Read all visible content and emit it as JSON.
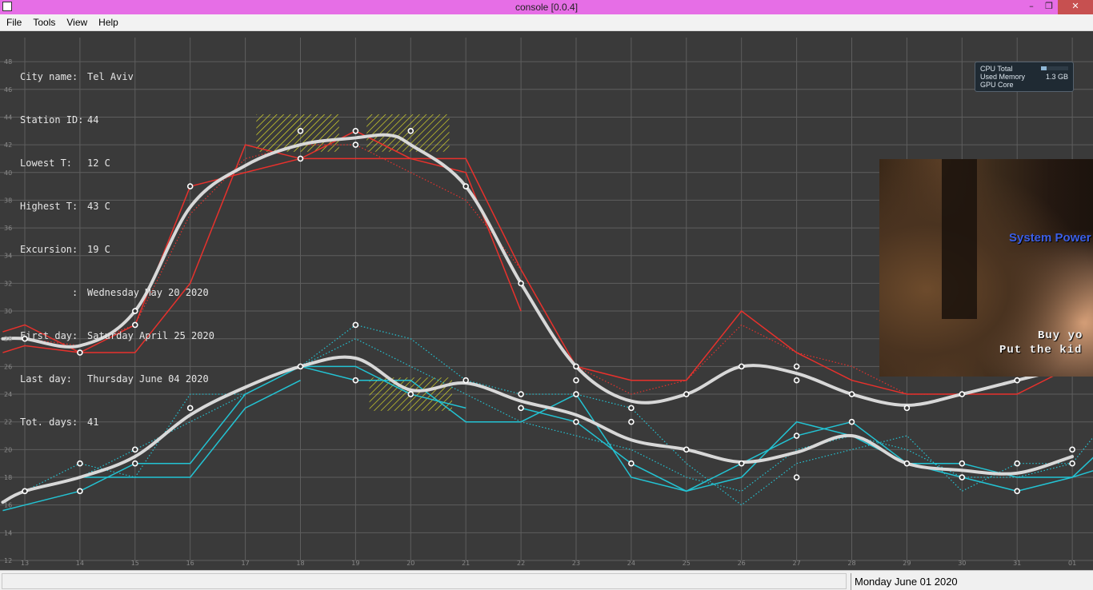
{
  "window": {
    "title": "console [0.0.4]",
    "buttons": {
      "minimize": "–",
      "maximize": "❐",
      "close": "✕"
    }
  },
  "menu": [
    "File",
    "Tools",
    "View",
    "Help"
  ],
  "info": [
    {
      "key": "City name:",
      "value": "Tel Aviv"
    },
    {
      "key": "Station ID:",
      "value": "44"
    },
    {
      "key": "Lowest T:",
      "value": "12 C"
    },
    {
      "key": "Highest T:",
      "value": "43 C"
    },
    {
      "key": "Excursion:",
      "value": "19 C"
    },
    {
      "key": "         :",
      "value": "Wednesday May 20 2020"
    },
    {
      "key": "First day:",
      "value": "Saturday April 25 2020"
    },
    {
      "key": "Last day:",
      "value": "Thursday June 04 2020"
    },
    {
      "key": "Tot. days:",
      "value": "41"
    }
  ],
  "gadget": {
    "cpu_label": "CPU Total",
    "cpu_fraction": 0.2,
    "mem_label": "Used Memory",
    "mem_value": "1.3 GB",
    "gpu_label": "GPU Core"
  },
  "video": {
    "overlay_text": "System Power",
    "subtitle_line1": "Buy yo",
    "subtitle_line2": "Put the kid"
  },
  "status": {
    "date": "Monday June 01 2020"
  },
  "chart_data": {
    "type": "line",
    "x_ticks": [
      "13",
      "14",
      "15",
      "16",
      "17",
      "18",
      "19",
      "20",
      "21",
      "22",
      "23",
      "24",
      "25",
      "26",
      "27",
      "28",
      "29",
      "30",
      "31",
      "01"
    ],
    "x": [
      13,
      14,
      15,
      16,
      17,
      18,
      19,
      20,
      21,
      22,
      23,
      24,
      25,
      26,
      27,
      28,
      29,
      30,
      31,
      32
    ],
    "y_ticks": [
      12,
      14,
      16,
      18,
      20,
      22,
      24,
      26,
      28,
      30,
      32,
      34,
      36,
      38,
      40,
      42,
      44,
      46,
      48
    ],
    "ylim": [
      12,
      49
    ],
    "grid": true,
    "colors": {
      "background": "#3a3a3a",
      "grid": "#5e5e5e",
      "high": "#e8312c",
      "low": "#23c3d3",
      "smooth": "#d8d8d8",
      "smooth_highlight": "#e7e7b0",
      "hatch": "#e3e32a",
      "point": "#ffffff"
    },
    "series": [
      {
        "role": "high-main",
        "style": "solid",
        "points": [
          [
            12.6,
            27
          ],
          [
            13,
            27.5
          ],
          [
            14,
            27
          ],
          [
            15,
            27
          ],
          [
            16,
            32
          ],
          [
            17,
            42
          ],
          [
            18,
            41
          ],
          [
            19,
            41
          ],
          [
            20,
            41
          ],
          [
            21,
            41
          ],
          [
            22,
            33
          ],
          [
            23,
            26
          ],
          [
            24,
            25
          ],
          [
            25,
            25
          ],
          [
            26,
            30
          ],
          [
            27,
            27
          ],
          [
            28,
            25
          ],
          [
            29,
            24
          ],
          [
            30,
            24
          ],
          [
            31,
            24
          ],
          [
            32,
            26
          ]
        ]
      },
      {
        "role": "high-alt",
        "style": "solid",
        "points": [
          [
            12.6,
            28.5
          ],
          [
            13,
            29
          ],
          [
            14,
            27
          ],
          [
            15,
            29
          ],
          [
            16,
            39
          ],
          [
            17,
            40
          ],
          [
            18,
            41
          ],
          [
            19,
            43
          ],
          [
            20,
            41
          ],
          [
            21,
            40
          ],
          [
            22,
            30
          ]
        ]
      },
      {
        "role": "high-dotted",
        "style": "dotted",
        "points": [
          [
            12.6,
            28
          ],
          [
            13,
            28
          ],
          [
            14,
            27.5
          ],
          [
            15,
            29
          ],
          [
            16,
            37
          ],
          [
            17,
            41
          ],
          [
            18,
            42
          ],
          [
            19,
            42
          ],
          [
            20,
            40
          ],
          [
            21,
            38
          ],
          [
            22,
            33
          ],
          [
            23,
            26
          ],
          [
            24,
            24
          ],
          [
            25,
            25
          ],
          [
            26,
            29
          ],
          [
            27,
            27
          ],
          [
            28,
            26
          ],
          [
            29,
            24
          ],
          [
            30,
            24
          ],
          [
            31,
            25
          ],
          [
            32,
            26
          ]
        ]
      },
      {
        "role": "high-smooth",
        "style": "smooth",
        "points": [
          [
            12.6,
            28
          ],
          [
            13,
            28
          ],
          [
            14,
            27.5
          ],
          [
            15,
            30
          ],
          [
            16,
            37.5
          ],
          [
            17,
            40.5
          ],
          [
            18,
            42
          ],
          [
            19,
            42.5
          ],
          [
            19.6,
            42.7
          ],
          [
            20,
            42
          ],
          [
            21,
            39
          ],
          [
            22,
            32
          ],
          [
            23,
            26
          ],
          [
            24,
            23.5
          ],
          [
            25,
            24
          ],
          [
            26,
            26
          ],
          [
            27,
            25.5
          ],
          [
            28,
            24
          ],
          [
            29,
            23.2
          ],
          [
            30,
            24
          ],
          [
            31,
            25
          ],
          [
            32,
            26
          ]
        ]
      },
      {
        "role": "high-points",
        "style": "points",
        "points": [
          [
            13,
            28
          ],
          [
            14,
            27
          ],
          [
            15,
            29
          ],
          [
            15,
            30
          ],
          [
            16,
            39
          ],
          [
            18,
            41
          ],
          [
            18,
            43
          ],
          [
            19,
            42
          ],
          [
            19,
            43
          ],
          [
            20,
            43
          ],
          [
            21,
            39
          ],
          [
            22,
            32
          ],
          [
            23,
            25
          ],
          [
            23,
            26
          ],
          [
            24,
            23
          ],
          [
            25,
            24
          ],
          [
            26,
            26
          ],
          [
            27,
            25
          ],
          [
            27,
            26
          ],
          [
            28,
            24
          ],
          [
            29,
            23
          ],
          [
            30,
            24
          ],
          [
            31,
            25
          ]
        ]
      },
      {
        "role": "low-main",
        "style": "solid",
        "points": [
          [
            12.6,
            15.6
          ],
          [
            13,
            16
          ],
          [
            14,
            17
          ],
          [
            15,
            19
          ],
          [
            16,
            19
          ],
          [
            17,
            24
          ],
          [
            18,
            26
          ],
          [
            19,
            25
          ],
          [
            20,
            25
          ],
          [
            21,
            22
          ],
          [
            22,
            22
          ],
          [
            23,
            24
          ],
          [
            24,
            18
          ],
          [
            25,
            17
          ],
          [
            26,
            18
          ],
          [
            27,
            22
          ],
          [
            28,
            21
          ],
          [
            29,
            19
          ],
          [
            30,
            19
          ],
          [
            31,
            18
          ],
          [
            32,
            18
          ],
          [
            32.4,
            18.5
          ]
        ]
      },
      {
        "role": "low-alt",
        "style": "solid",
        "points": [
          [
            13,
            17
          ],
          [
            14,
            18
          ],
          [
            15,
            18
          ],
          [
            16,
            18
          ],
          [
            17,
            23
          ],
          [
            18,
            25
          ]
        ]
      },
      {
        "role": "low-alt2",
        "style": "solid",
        "points": [
          [
            18,
            26
          ],
          [
            19,
            26
          ],
          [
            20,
            24
          ],
          [
            21,
            23
          ]
        ]
      },
      {
        "role": "low-alt3",
        "style": "solid",
        "points": [
          [
            22,
            23
          ],
          [
            23,
            22
          ],
          [
            24,
            19
          ],
          [
            25,
            17
          ],
          [
            26,
            19
          ],
          [
            27,
            21
          ],
          [
            28,
            22
          ],
          [
            29,
            19
          ],
          [
            30,
            18
          ],
          [
            31,
            17
          ],
          [
            32,
            18
          ],
          [
            32.4,
            19.5
          ]
        ]
      },
      {
        "role": "low-dotted",
        "style": "dotted",
        "points": [
          [
            13,
            17
          ],
          [
            14,
            19
          ],
          [
            15,
            18
          ],
          [
            16,
            24
          ],
          [
            17,
            24
          ],
          [
            18,
            26
          ],
          [
            19,
            29
          ],
          [
            20,
            28
          ],
          [
            21,
            25
          ],
          [
            22,
            24
          ],
          [
            23,
            24
          ],
          [
            24,
            23
          ],
          [
            25,
            19
          ],
          [
            26,
            16
          ],
          [
            27,
            19
          ],
          [
            28,
            20
          ],
          [
            29,
            21
          ],
          [
            30,
            17
          ],
          [
            31,
            19
          ],
          [
            32,
            19
          ],
          [
            32.4,
            21
          ]
        ]
      },
      {
        "role": "low-dotted2",
        "style": "dotted",
        "points": [
          [
            14,
            18
          ],
          [
            15,
            20
          ],
          [
            16,
            22
          ],
          [
            17,
            24
          ],
          [
            18,
            26
          ],
          [
            19,
            28
          ],
          [
            20,
            26
          ],
          [
            21,
            24
          ],
          [
            22,
            22
          ],
          [
            23,
            21
          ],
          [
            24,
            20
          ],
          [
            25,
            18
          ],
          [
            26,
            17
          ],
          [
            27,
            20
          ],
          [
            28,
            21
          ],
          [
            29,
            20
          ],
          [
            30,
            18
          ],
          [
            31,
            18
          ],
          [
            32,
            19
          ]
        ]
      },
      {
        "role": "low-smooth",
        "style": "smooth",
        "points": [
          [
            12.6,
            16.2
          ],
          [
            13,
            17
          ],
          [
            14,
            18
          ],
          [
            15,
            19.5
          ],
          [
            16,
            22.5
          ],
          [
            17,
            24.5
          ],
          [
            18,
            26
          ],
          [
            19,
            26.6
          ],
          [
            20,
            24.3
          ],
          [
            21,
            24.8
          ],
          [
            22,
            23.5
          ],
          [
            23,
            22.5
          ],
          [
            24,
            20.7
          ],
          [
            25,
            20
          ],
          [
            26,
            19.1
          ],
          [
            27,
            19.8
          ],
          [
            28,
            21
          ],
          [
            29,
            19
          ],
          [
            30,
            18.5
          ],
          [
            31,
            18.3
          ],
          [
            32,
            19.5
          ]
        ]
      },
      {
        "role": "low-points",
        "style": "points",
        "points": [
          [
            13,
            17
          ],
          [
            14,
            17
          ],
          [
            14,
            19
          ],
          [
            15,
            19
          ],
          [
            15,
            20
          ],
          [
            16,
            23
          ],
          [
            18,
            26
          ],
          [
            19,
            29
          ],
          [
            19,
            25
          ],
          [
            20,
            24
          ],
          [
            21,
            25
          ],
          [
            22,
            24
          ],
          [
            22,
            23
          ],
          [
            23,
            22
          ],
          [
            23,
            24
          ],
          [
            24,
            22
          ],
          [
            24,
            19
          ],
          [
            25,
            20
          ],
          [
            26,
            19
          ],
          [
            27,
            21
          ],
          [
            27,
            18
          ],
          [
            28,
            22
          ],
          [
            29,
            19
          ],
          [
            30,
            19
          ],
          [
            30,
            18
          ],
          [
            31,
            17
          ],
          [
            31,
            19
          ],
          [
            32,
            20
          ],
          [
            32,
            19
          ]
        ]
      }
    ],
    "hatched_regions": [
      {
        "x0": 17.2,
        "x1": 18.7,
        "y0": 41.5,
        "y1": 44.2
      },
      {
        "x0": 19.2,
        "x1": 20.7,
        "y0": 41.5,
        "y1": 44.2
      },
      {
        "x0": 19.25,
        "x1": 20.75,
        "y0": 22.8,
        "y1": 25.2
      }
    ]
  }
}
